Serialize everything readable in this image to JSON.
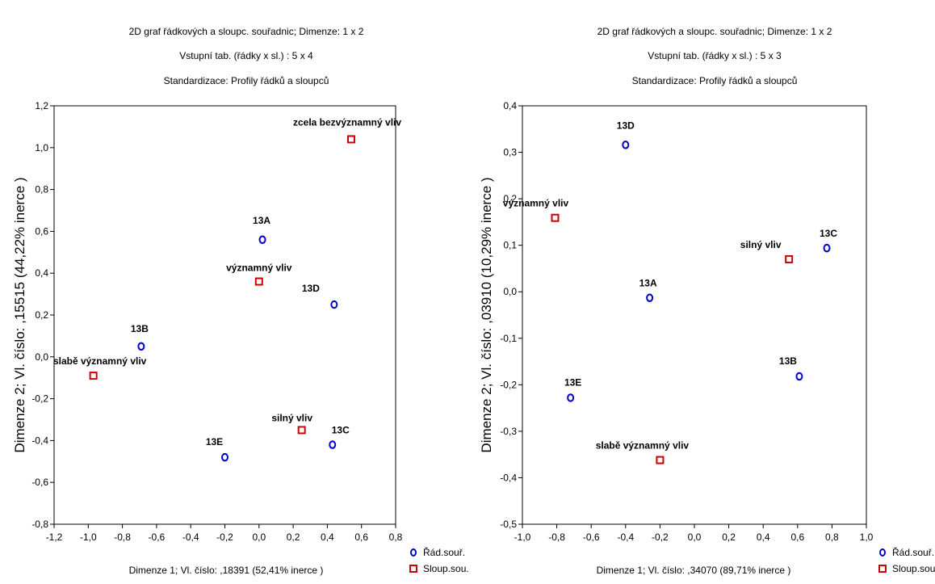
{
  "chart_data": [
    {
      "type": "scatter",
      "title_lines": [
        "2D graf řádkových a sloupc. souřadnic; Dimenze:    1 x  2",
        "Vstupní tab. (řádky x sl.) : 5 x 4",
        "Standardizace:   Profily řádků a sloupců"
      ],
      "xlabel": "Dimenze   1; Vl. číslo: ,18391 (52,41% inerce    )",
      "ylabel": "Dimenze   2; Vl. číslo: ,15515 (44,22% inerce    )",
      "xlim": [
        -1.2,
        0.8
      ],
      "ylim": [
        -0.8,
        1.2
      ],
      "xticks": [
        "-1,2",
        "-1,0",
        "-0,8",
        "-0,6",
        "-0,4",
        "-0,2",
        "0,0",
        "0,2",
        "0,4",
        "0,6",
        "0,8"
      ],
      "yticks": [
        "-0,8",
        "-0,6",
        "-0,4",
        "-0,2",
        "0,0",
        "0,2",
        "0,4",
        "0,6",
        "0,8",
        "1,0",
        "1,2"
      ],
      "legend": [
        "Řád.souř.",
        "Sloup.sou."
      ],
      "series": [
        {
          "name": "Řád.souř.",
          "color": "#0000cc",
          "marker": "circle",
          "points": [
            {
              "label": "13A",
              "x": 0.02,
              "y": 0.56
            },
            {
              "label": "13B",
              "x": -0.69,
              "y": 0.05
            },
            {
              "label": "13C",
              "x": 0.43,
              "y": -0.42
            },
            {
              "label": "13D",
              "x": 0.44,
              "y": 0.25
            },
            {
              "label": "13E",
              "x": -0.2,
              "y": -0.48
            }
          ]
        },
        {
          "name": "Sloup.sou.",
          "color": "#cc0000",
          "marker": "square",
          "points": [
            {
              "label": "zcela bezvýznamný vliv",
              "x": 0.54,
              "y": 1.04
            },
            {
              "label": "významný vliv",
              "x": 0.0,
              "y": 0.36
            },
            {
              "label": "slabě významný vliv",
              "x": -0.97,
              "y": -0.09
            },
            {
              "label": "silný vliv",
              "x": 0.25,
              "y": -0.35
            }
          ]
        }
      ]
    },
    {
      "type": "scatter",
      "title_lines": [
        "2D graf řádkových a sloupc. souřadnic; Dimenze:    1 x  2",
        "Vstupní tab. (řádky x sl.) : 5 x 3",
        "Standardizace:   Profily řádků a sloupců"
      ],
      "xlabel": "Dimenze   1; Vl. číslo: ,34070 (89,71% inerce    )",
      "ylabel": "Dimenze   2; Vl. číslo: ,03910 (10,29% inerce    )",
      "xlim": [
        -1.0,
        1.0
      ],
      "ylim": [
        -0.5,
        0.4
      ],
      "xticks": [
        "-1,0",
        "-0,8",
        "-0,6",
        "-0,4",
        "-0,2",
        "0,0",
        "0,2",
        "0,4",
        "0,6",
        "0,8",
        "1,0"
      ],
      "yticks": [
        "-0,5",
        "-0,4",
        "-0,3",
        "-0,2",
        "-0,1",
        "0,0",
        "0,1",
        "0,2",
        "0,3",
        "0,4"
      ],
      "legend": [
        "Řád.souř.",
        "Sloup.sou."
      ],
      "series": [
        {
          "name": "Řád.souř.",
          "color": "#0000cc",
          "marker": "circle",
          "points": [
            {
              "label": "13D",
              "x": -0.4,
              "y": 0.316
            },
            {
              "label": "13C",
              "x": 0.77,
              "y": 0.094
            },
            {
              "label": "13A",
              "x": -0.26,
              "y": -0.013
            },
            {
              "label": "13B",
              "x": 0.61,
              "y": -0.182
            },
            {
              "label": "13E",
              "x": -0.72,
              "y": -0.228
            }
          ]
        },
        {
          "name": "Sloup.sou.",
          "color": "#cc0000",
          "marker": "square",
          "points": [
            {
              "label": "významný vliv",
              "x": -0.81,
              "y": 0.159
            },
            {
              "label": "silný vliv",
              "x": 0.55,
              "y": 0.07
            },
            {
              "label": "slabě významný vliv",
              "x": -0.2,
              "y": -0.362
            }
          ]
        }
      ]
    }
  ]
}
